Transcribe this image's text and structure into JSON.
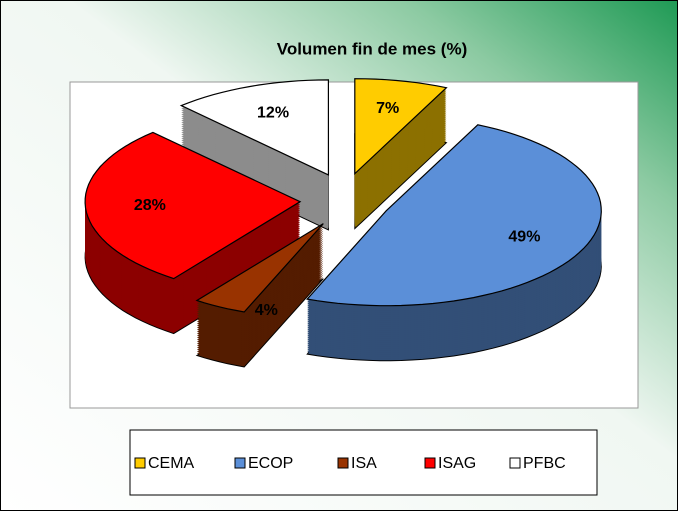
{
  "chart_data": {
    "type": "pie3d",
    "title": "Volumen fin de mes (%)",
    "categories": [
      "CEMA",
      "ECOP",
      "ISA",
      "ISAG",
      "PFBC"
    ],
    "values": [
      7,
      49,
      4,
      28,
      12
    ],
    "value_labels": [
      "7%",
      "49%",
      "4%",
      "28%",
      "12%"
    ],
    "colors": [
      "#ffcc00",
      "#5b8fd8",
      "#993300",
      "#ff0000",
      "#ffffff"
    ],
    "legend": "bottom"
  }
}
